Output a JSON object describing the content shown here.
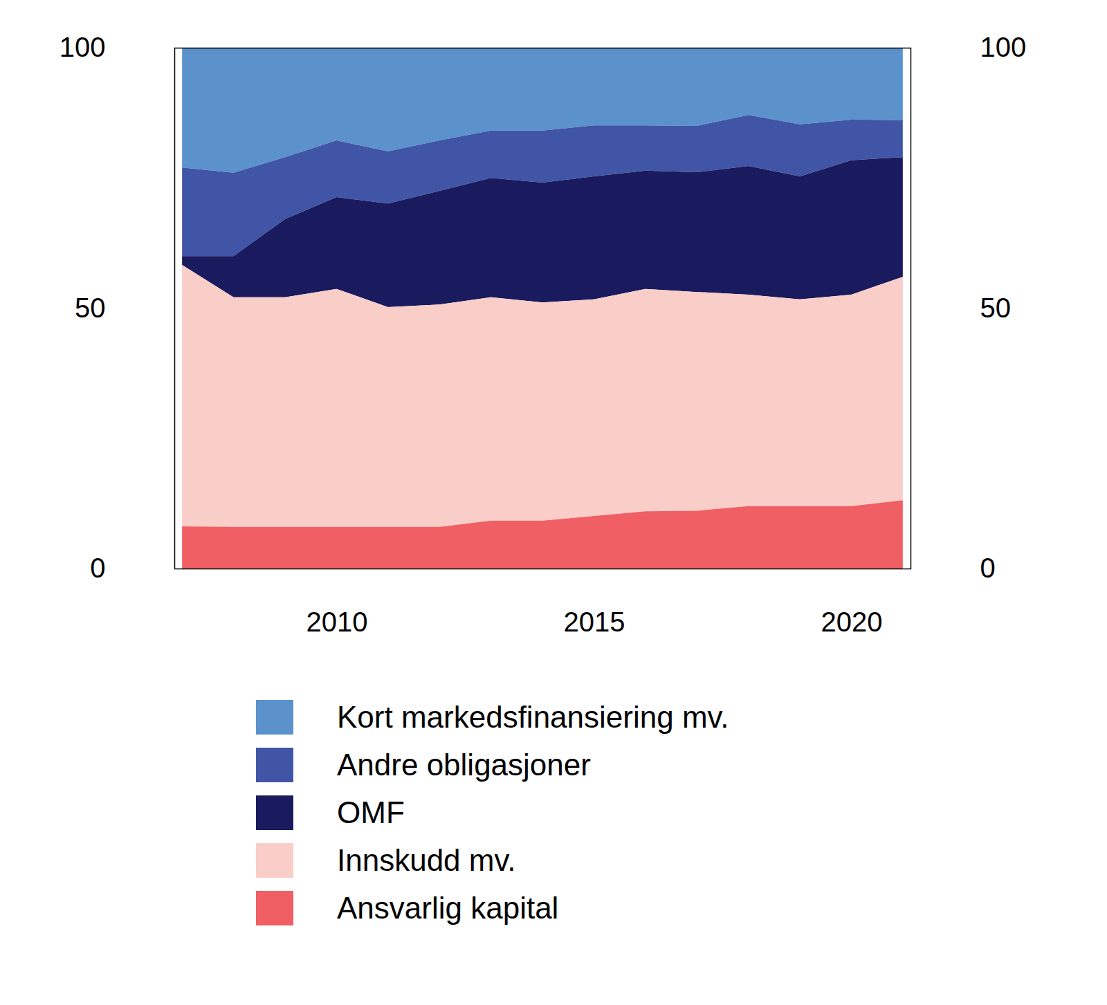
{
  "chart_data": {
    "type": "area",
    "stacked": true,
    "x": [
      2007,
      2008,
      2009,
      2010,
      2011,
      2012,
      2013,
      2014,
      2015,
      2016,
      2017,
      2018,
      2019,
      2020,
      2021
    ],
    "xlim": [
      2006.85,
      2021.15
    ],
    "xticks": [
      2010,
      2015,
      2020
    ],
    "ylim": [
      0,
      100
    ],
    "yticks": [
      0,
      50,
      100
    ],
    "legend": "bottom",
    "series": [
      {
        "name": "Kort markedsfinansiering mv.",
        "color": "#5b92cc",
        "values": [
          23.0,
          24.0,
          21.0,
          17.8,
          19.9,
          17.8,
          15.9,
          15.9,
          14.9,
          14.9,
          15.0,
          12.9,
          14.7,
          13.8,
          13.9
        ]
      },
      {
        "name": "Andre obligasjoner",
        "color": "#4055a5",
        "values": [
          17.0,
          16.0,
          11.9,
          10.9,
          10.0,
          9.7,
          9.1,
          10.0,
          9.8,
          8.7,
          8.9,
          9.8,
          10.0,
          7.8,
          7.1
        ]
      },
      {
        "name": "OMF",
        "color": "#1a1b5e",
        "values": [
          1.7,
          7.9,
          15.0,
          17.6,
          19.9,
          21.8,
          22.9,
          23.0,
          23.6,
          22.7,
          23.0,
          24.7,
          23.6,
          25.8,
          23.0
        ]
      },
      {
        "name": "Innskudd mv.",
        "color": "#f9cdc8",
        "values": [
          50.2,
          44.1,
          44.1,
          45.7,
          42.2,
          42.7,
          42.9,
          41.9,
          41.6,
          42.7,
          42.0,
          40.6,
          39.7,
          40.6,
          42.9
        ]
      },
      {
        "name": "Ansvarlig kapital",
        "color": "#f05f64",
        "values": [
          8.1,
          8.0,
          8.0,
          8.0,
          8.0,
          8.0,
          9.2,
          9.2,
          10.1,
          11.0,
          11.1,
          12.0,
          12.0,
          12.0,
          13.1
        ]
      }
    ]
  }
}
